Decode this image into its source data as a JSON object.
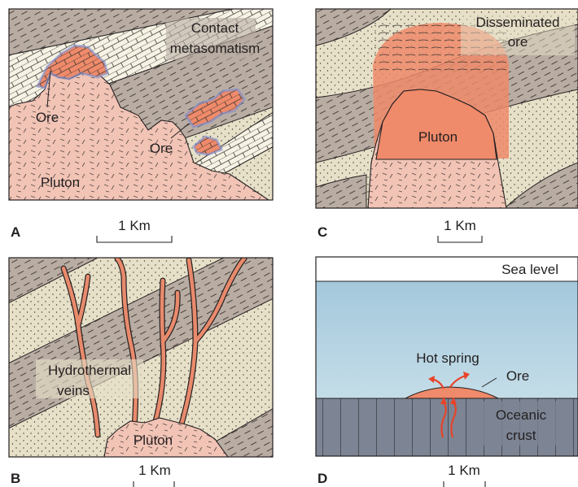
{
  "panels": {
    "a": {
      "letter": "A",
      "contact_label_1": "Contact",
      "contact_label_2": "metasomatism",
      "ore_label_1": "Ore",
      "ore_label_2": "Ore",
      "pluton_label": "Pluton",
      "scale_label": "1 Km"
    },
    "b": {
      "letter": "B",
      "veins_label_1": "Hydrothermal",
      "veins_label_2": "veins",
      "pluton_label": "Pluton",
      "scale_label": "1 Km"
    },
    "c": {
      "letter": "C",
      "disseminated_label_1": "Disseminated",
      "disseminated_label_2": "ore",
      "pluton_label": "Pluton",
      "scale_label": "1 Km"
    },
    "d": {
      "letter": "D",
      "sea_level_label": "Sea level",
      "hot_spring_label": "Hot spring",
      "ore_label": "Ore",
      "crust_label_1": "Oceanic",
      "crust_label_2": "crust",
      "scale_label": "1 Km"
    }
  },
  "colors": {
    "sandstone": "#e7e0c8",
    "shale": "#b9ada3",
    "limestone": "#f6f2e4",
    "pluton": "#f1c4b6",
    "ore": "#ef8a6a",
    "vein": "#e88a6c",
    "sea": "#a9cde0",
    "crust": "#7d8594",
    "outline": "#231f20"
  }
}
